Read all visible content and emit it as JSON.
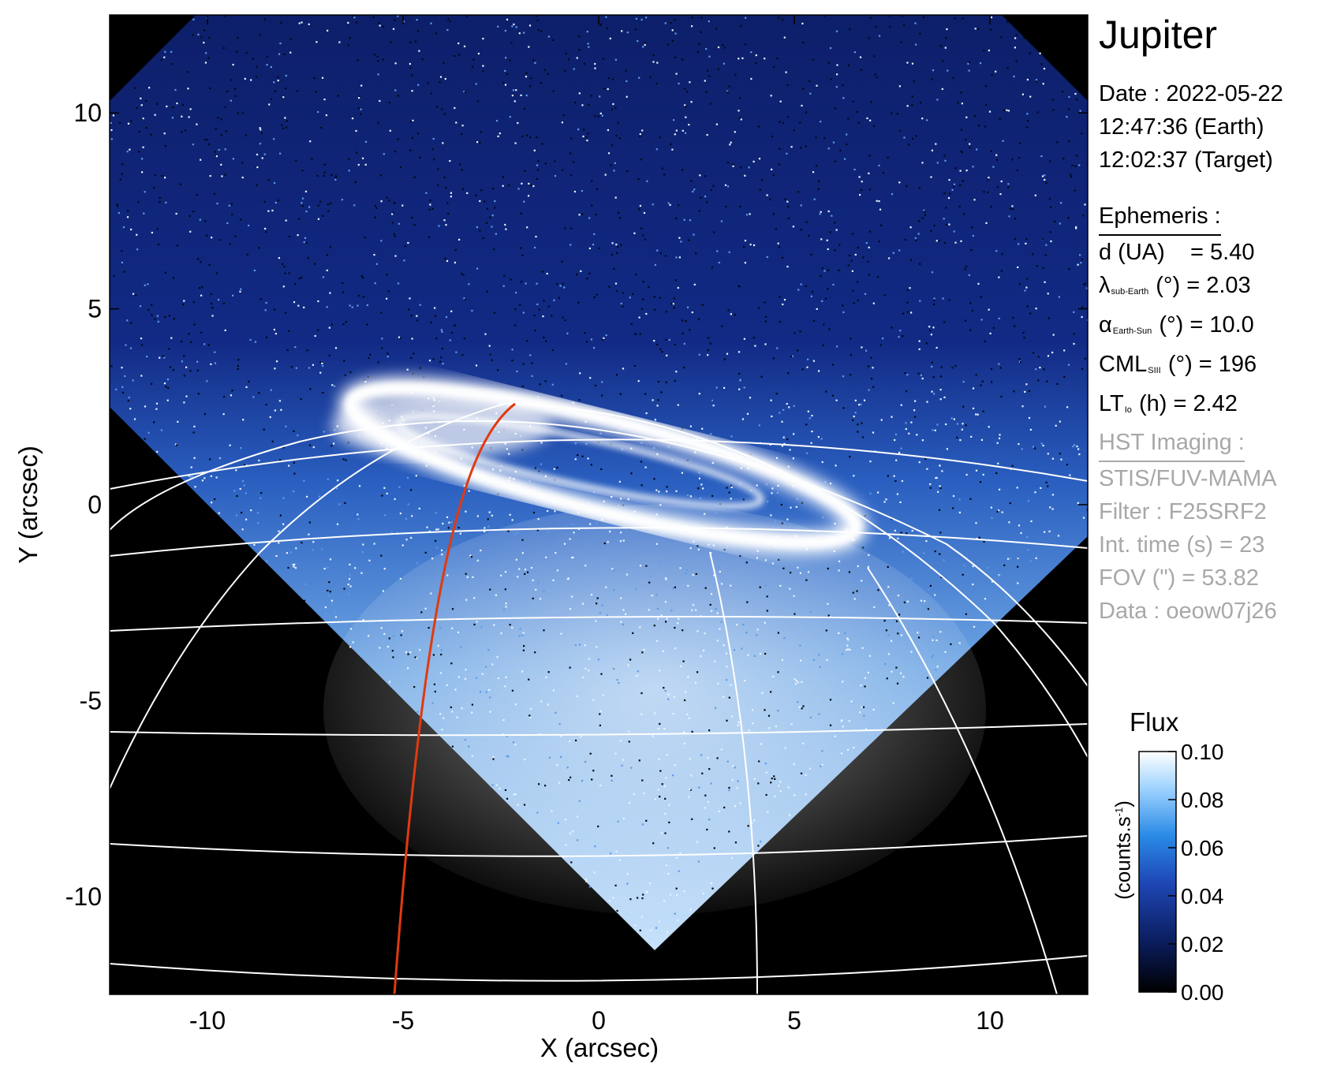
{
  "plot": {
    "target": "Jupiter",
    "xlabel": "X (arcsec)",
    "ylabel": "Y (arcsec)",
    "xlim": [
      -12.5,
      12.5
    ],
    "ylim": [
      -12.5,
      12.5
    ],
    "xticks": [
      -10,
      -5,
      0,
      5,
      10
    ],
    "yticks": [
      10,
      5,
      0,
      -5,
      -10
    ],
    "colors": {
      "background": "#000000",
      "grid": "#ffffff",
      "meridian": "#e03a10",
      "aurora": "#ffffff"
    }
  },
  "info": {
    "title": "Jupiter",
    "date": "Date : 2022-05-22",
    "earth_time": "12:47:36 (Earth)",
    "target_time": "12:02:37 (Target)",
    "ephemeris_header": "Ephemeris :",
    "d": {
      "label": "d (UA)",
      "value": "= 5.40"
    },
    "lambda": {
      "symbol": "λ",
      "sub": "sub-Earth",
      "rest": "(°) = 2.03"
    },
    "alpha": {
      "symbol": "α",
      "sub": "Earth-Sun",
      "rest": "(°) = 10.0"
    },
    "cml": {
      "symbol": "CML",
      "sub": "SIII",
      "rest": "(°) = 196"
    },
    "lt": {
      "symbol": "LT",
      "sub": "Io",
      "rest": "(h) = 2.42"
    },
    "hst_header": "HST Imaging :",
    "instrument": "STIS/FUV-MAMA",
    "filter": "Filter : F25SRF2",
    "int_time": "Int. time (s) = 23",
    "fov": "FOV (\") = 53.82",
    "dataset": "Data : oeow07j26"
  },
  "colorbar": {
    "title": "Flux",
    "unit_prefix": "(counts.s",
    "unit_sup": "-1",
    "unit_suffix": ")",
    "ticks": [
      "0.10",
      "0.08",
      "0.06",
      "0.04",
      "0.02",
      "0.00"
    ],
    "range": [
      0.0,
      0.1
    ],
    "colors": [
      "#000000",
      "#0a1c5a",
      "#1e46b4",
      "#2a8ae6",
      "#a0d4ff",
      "#ffffff"
    ]
  }
}
